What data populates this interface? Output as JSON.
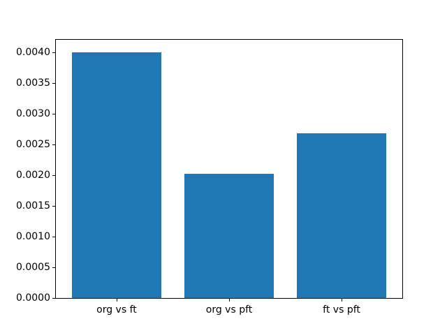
{
  "figure": {
    "background": "#ffffff",
    "title": "",
    "xlabel": "",
    "ylabel": ""
  },
  "chart_data": {
    "type": "bar",
    "categories": [
      "org vs ft",
      "org vs pft",
      "ft vs pft"
    ],
    "values": [
      0.00401,
      0.00203,
      0.00269
    ],
    "title": "",
    "xlabel": "",
    "ylabel": "",
    "ylim": [
      0,
      0.00421
    ],
    "xlim": [
      -0.54,
      2.54
    ],
    "bar_positions": [
      0,
      1,
      2
    ],
    "bar_width": 0.8,
    "bar_color": "#1f77b4",
    "ytick_labels": [
      "0.0000",
      "0.0005",
      "0.0010",
      "0.0015",
      "0.0020",
      "0.0025",
      "0.0030",
      "0.0035",
      "0.0040"
    ],
    "ytick_values": [
      0.0,
      0.0005,
      0.001,
      0.0015,
      0.002,
      0.0025,
      0.003,
      0.0035,
      0.004
    ],
    "grid": false,
    "legend_position": "none",
    "axis_color": "#000000",
    "text_color": "#000000"
  }
}
